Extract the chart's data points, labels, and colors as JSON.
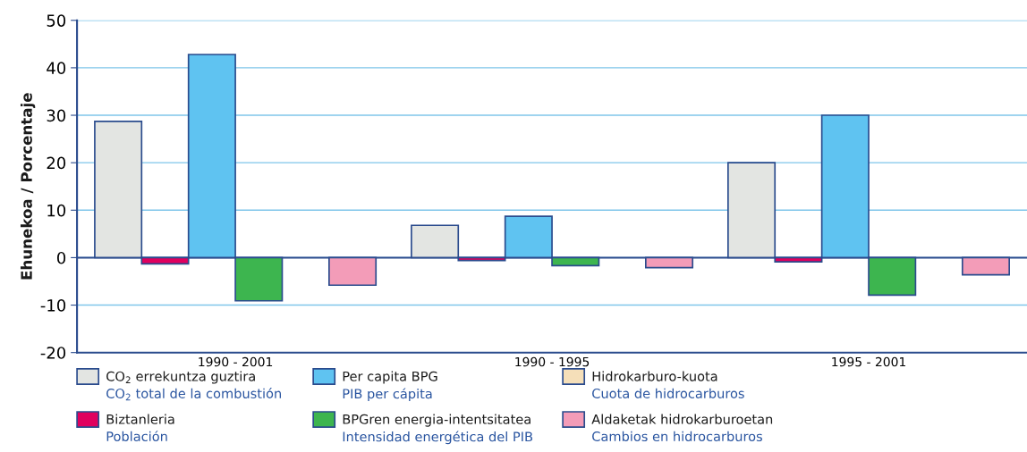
{
  "chart_data": {
    "type": "bar",
    "ylabel": "Ehunekoa / Porcentaje",
    "categories": [
      "1990 - 2001",
      "1990 - 1995",
      "1995 - 2001"
    ],
    "series": [
      {
        "name": "CO$_{2}$ errekuntza guztira\nCO$_{2}$ total de la combustión",
        "color": "#e3e5e2",
        "values": [
          28.7,
          6.8,
          20.0
        ]
      },
      {
        "name": "Biztanleria\nPoblación",
        "color": "#e0005e",
        "values": [
          -1.3,
          -0.6,
          -0.9
        ]
      },
      {
        "name": "Per capita BPG\nPIB per cápita",
        "color": "#5fc3f1",
        "values": [
          42.8,
          8.7,
          30.0
        ]
      },
      {
        "name": "BPGren energia-intentsitatea\nIntensidad energética del PIB",
        "color": "#3db54f",
        "values": [
          -9.1,
          -1.7,
          -7.9
        ]
      },
      {
        "name": "Hidrokarburo-kuota\nCuota de hidrocarburos",
        "color": "#f5dfb9",
        "values": [
          null,
          null,
          null
        ]
      },
      {
        "name": "Aldaketak hidrokarburoetan\nCambios en hidrocarburos",
        "color": "#f39cb8",
        "values": [
          -5.8,
          -2.1,
          -3.6
        ]
      }
    ],
    "ylim": [
      -20,
      50
    ],
    "yticks": [
      -20,
      -10,
      0,
      10,
      20,
      30,
      40,
      50
    ],
    "grid": "y",
    "ref_lines": [
      {
        "axis": "y",
        "value": 0,
        "color": "#2a4b8d"
      }
    ],
    "legend": "bottom"
  }
}
